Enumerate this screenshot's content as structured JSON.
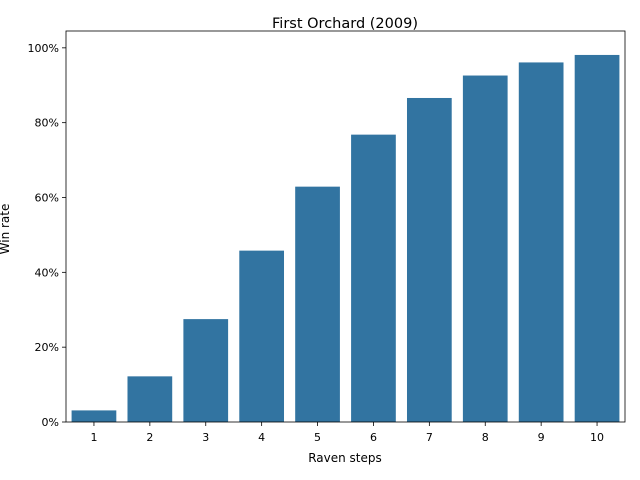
{
  "chart_data": {
    "type": "bar",
    "title": "First Orchard (2009)",
    "xlabel": "Raven steps",
    "ylabel": "Win rate",
    "categories": [
      "1",
      "2",
      "3",
      "4",
      "5",
      "6",
      "7",
      "8",
      "9",
      "10"
    ],
    "values": [
      0.031,
      0.122,
      0.275,
      0.458,
      0.629,
      0.768,
      0.866,
      0.926,
      0.961,
      0.981
    ],
    "ylim": [
      0,
      1.045
    ],
    "yticks": [
      0,
      0.2,
      0.4,
      0.6,
      0.8,
      1.0
    ],
    "ytick_labels": [
      "0%",
      "20%",
      "40%",
      "60%",
      "80%",
      "100%"
    ],
    "bar_color": "#3274a1",
    "grid": false,
    "legend": "none"
  }
}
